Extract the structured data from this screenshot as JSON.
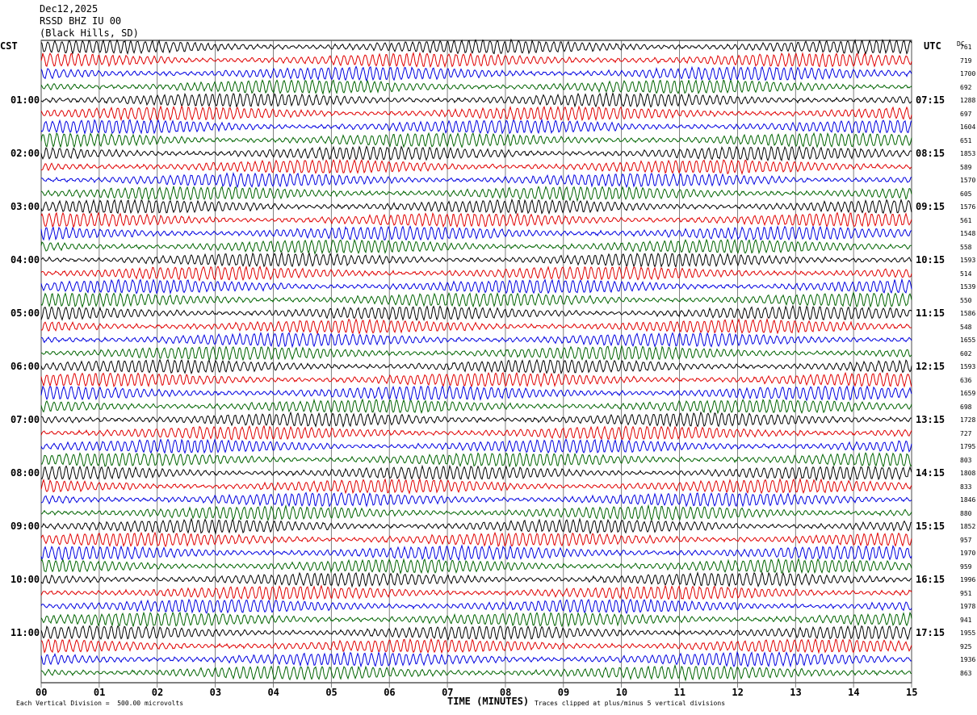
{
  "header": {
    "date": "Dec12,2025",
    "station": "RSSD BHZ IU 00",
    "location": "(Black Hills, SD)"
  },
  "left_timezone": "CST",
  "right_timezone": "UTC",
  "dc_label": "DC",
  "footer": {
    "scale_note": "Each Vertical Division =  500.00 microvolts",
    "xlabel": "TIME (MINUTES)",
    "clip_note": "Traces clipped at plus/minus 5 vertical divisions"
  },
  "colors": {
    "trace_cycle": [
      "#000000",
      "#e00000",
      "#0000e0",
      "#006400"
    ],
    "grid": "#606060"
  },
  "chart_data": {
    "type": "line",
    "title": "RSSD BHZ IU 00",
    "xlabel": "TIME (MINUTES)",
    "xlim": [
      0,
      15
    ],
    "x_ticks": [
      "00",
      "01",
      "02",
      "03",
      "04",
      "05",
      "06",
      "07",
      "08",
      "09",
      "10",
      "11",
      "12",
      "13",
      "14",
      "15"
    ],
    "grid": true,
    "trace_count": 48,
    "traces_per_hour": 4,
    "left_hour_labels": [
      "01:00",
      "02:00",
      "03:00",
      "04:00",
      "05:00",
      "06:00",
      "07:00",
      "08:00",
      "09:00",
      "10:00",
      "11:00"
    ],
    "right_hour_labels": [
      "07:15",
      "08:15",
      "09:15",
      "10:15",
      "11:15",
      "12:15",
      "13:15",
      "14:15",
      "15:15",
      "16:15",
      "17:15"
    ],
    "dc_offsets": [
      "761",
      "719",
      "1700",
      "692",
      "1288",
      "697",
      "1604",
      "651",
      "1853",
      "589",
      "1570",
      "605",
      "1576",
      "561",
      "1548",
      "558",
      "1593",
      "514",
      "1539",
      "550",
      "1586",
      "548",
      "1655",
      "602",
      "1593",
      "636",
      "1659",
      "698",
      "1728",
      "727",
      "1795",
      "803",
      "1808",
      "833",
      "1846",
      "880",
      "1852",
      "957",
      "1970",
      "959",
      "1996",
      "951",
      "1978",
      "941",
      "1955",
      "925",
      "1936",
      "863"
    ]
  }
}
